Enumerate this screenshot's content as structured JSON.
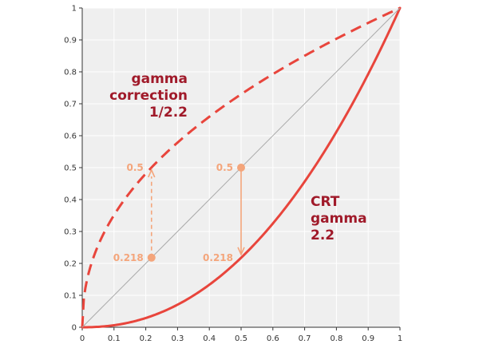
{
  "chart_data": {
    "type": "line",
    "title": "",
    "xlabel": "",
    "ylabel": "",
    "xlim": [
      0,
      1
    ],
    "ylim": [
      0,
      1
    ],
    "grid": true,
    "x_ticks": [
      "0",
      "0.1",
      "0.2",
      "0.3",
      "0.4",
      "0.5",
      "0.6",
      "0.7",
      "0.8",
      "0.9",
      "1"
    ],
    "y_ticks": [
      "0",
      "0.1",
      "0.2",
      "0.3",
      "0.4",
      "0.5",
      "0.6",
      "0.7",
      "0.8",
      "0.9",
      "1"
    ],
    "series": [
      {
        "name": "",
        "style": "solid",
        "gamma": 2.2,
        "color": "#e8453c",
        "x": [
          0,
          0.1,
          0.2,
          0.3,
          0.4,
          0.5,
          0.6,
          0.7,
          0.8,
          0.9,
          1
        ],
        "y": [
          0,
          0.006,
          0.029,
          0.071,
          0.133,
          0.218,
          0.325,
          0.456,
          0.612,
          0.793,
          1
        ]
      },
      {
        "name": "",
        "style": "dashed",
        "gamma": 0.4545,
        "color": "#e8453c",
        "x": [
          0,
          0.1,
          0.2,
          0.3,
          0.4,
          0.5,
          0.6,
          0.7,
          0.8,
          0.9,
          1
        ],
        "y": [
          0,
          0.351,
          0.481,
          0.578,
          0.659,
          0.729,
          0.793,
          0.85,
          0.904,
          0.953,
          1
        ]
      },
      {
        "name": "",
        "style": "reference",
        "color": "#aaaaaa",
        "x": [
          0,
          1
        ],
        "y": [
          0,
          1
        ]
      }
    ],
    "points": [
      {
        "x": 0.218,
        "y": 0.218,
        "label": "0.218"
      },
      {
        "x": 0.218,
        "y": 0.5,
        "label": "0.5"
      },
      {
        "x": 0.5,
        "y": 0.5,
        "label": "0.5"
      },
      {
        "x": 0.5,
        "y": 0.218,
        "label": "0.218"
      }
    ],
    "annotations": {
      "correction": [
        "gamma",
        "correction",
        "1/2.2"
      ],
      "crt": [
        "CRT",
        "gamma",
        "2.2"
      ]
    },
    "colors": {
      "curve": "#e8453c",
      "annotation_text": "#a01a2a",
      "points": "#f4a57b",
      "plot_background": "#efefef",
      "grid": "#ffffff",
      "diagonal": "#aaaaaa"
    }
  }
}
